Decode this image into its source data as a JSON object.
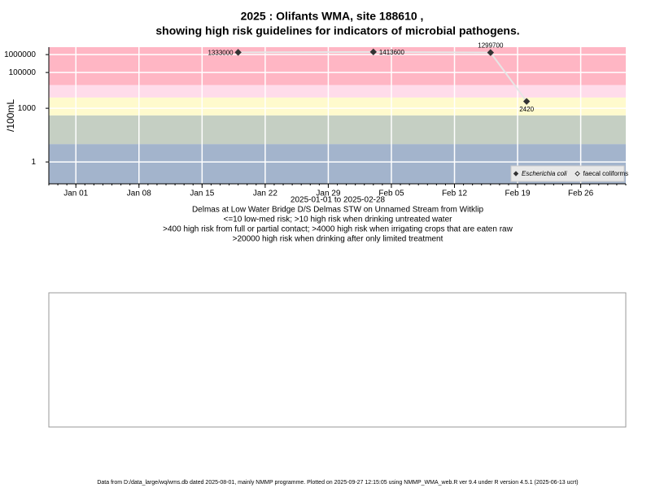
{
  "chart_data": {
    "type": "line",
    "title": "2025 : Olifants WMA, site 188610 ,",
    "title_line2": "showing high risk guidelines for indicators of microbial pathogens.",
    "y_label": "/100mL",
    "x_label": "2025-01-01 to 2025-02-28",
    "notes": [
      "Delmas at Low Water Bridge D/S Delmas STW on Unnamed Stream from Witklip",
      "<=10 low-med risk; >10 high risk when drinking untreated water",
      ">400 high risk from full or partial contact; >4000 high risk when irrigating crops that are eaten raw",
      ">20000 high risk when drinking after only limited treatment"
    ],
    "footer": "Data from D:/data_large/wq/wms.db dated 2025-08-01, mainly NMMP programme. Plotted on 2025-09-27 12:15:05 using NMMP_WMA_web.R ver 9.4 under R version 4.5.1 (2025-06-13 ucrt)",
    "x": [
      "2025-01-19",
      "2025-02-03",
      "2025-02-16",
      "2025-02-20"
    ],
    "series": [
      {
        "name": "Escherichia coli",
        "color": "#333333",
        "values": [
          1333000,
          1413600,
          1299700,
          2420
        ]
      },
      {
        "name": "faecal coliforms",
        "color": "#ffffff",
        "values": [
          null,
          null,
          null,
          null
        ]
      }
    ],
    "line_color": "#e6e6e6",
    "xlim": [
      "2024-12-29",
      "2025-03-03"
    ],
    "xticks": [
      {
        "value": "2025-01-01",
        "label": "Jan 01"
      },
      {
        "value": "2025-01-08",
        "label": "Jan 08"
      },
      {
        "value": "2025-01-15",
        "label": "Jan 15"
      },
      {
        "value": "2025-01-22",
        "label": "Jan 22"
      },
      {
        "value": "2025-01-29",
        "label": "Jan 29"
      },
      {
        "value": "2025-02-05",
        "label": "Feb 05"
      },
      {
        "value": "2025-02-12",
        "label": "Feb 12"
      },
      {
        "value": "2025-02-19",
        "label": "Feb 19"
      },
      {
        "value": "2025-02-26",
        "label": "Feb 26"
      }
    ],
    "log_y": true,
    "ylim": [
      0.06,
      2600000
    ],
    "yticks": [
      1,
      1000,
      100000,
      1000000
    ],
    "thresholds": [
      10,
      400,
      4000,
      20000
    ],
    "band_colors": [
      "#a3b4cc",
      "#c5cfc3",
      "#fffacd",
      "#ffdcea",
      "#ffb6c4"
    ],
    "grid": true,
    "legend": "bottom-right"
  }
}
